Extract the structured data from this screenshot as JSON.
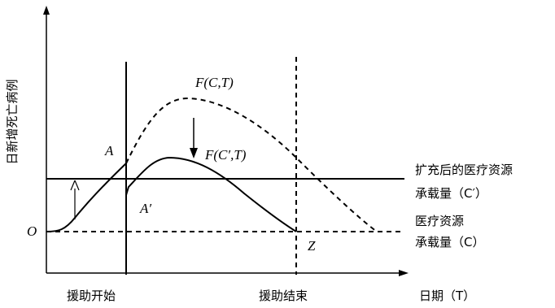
{
  "axes": {
    "y_label": "日新增死亡病例",
    "x_label": "日期（T）",
    "origin": "O"
  },
  "curves": {
    "original": "F(C,T)",
    "expanded": "F(C′,T)"
  },
  "points": {
    "a": "A",
    "a_prime": "A′",
    "z": "Z"
  },
  "capacity_lines": {
    "expanded_line1": "扩充后的医疗资源",
    "expanded_line2": "承载量（C′）",
    "original_line1": "医疗资源",
    "original_line2": "承载量（C）"
  },
  "events": {
    "start": "援助开始",
    "end": "援助结束"
  }
}
